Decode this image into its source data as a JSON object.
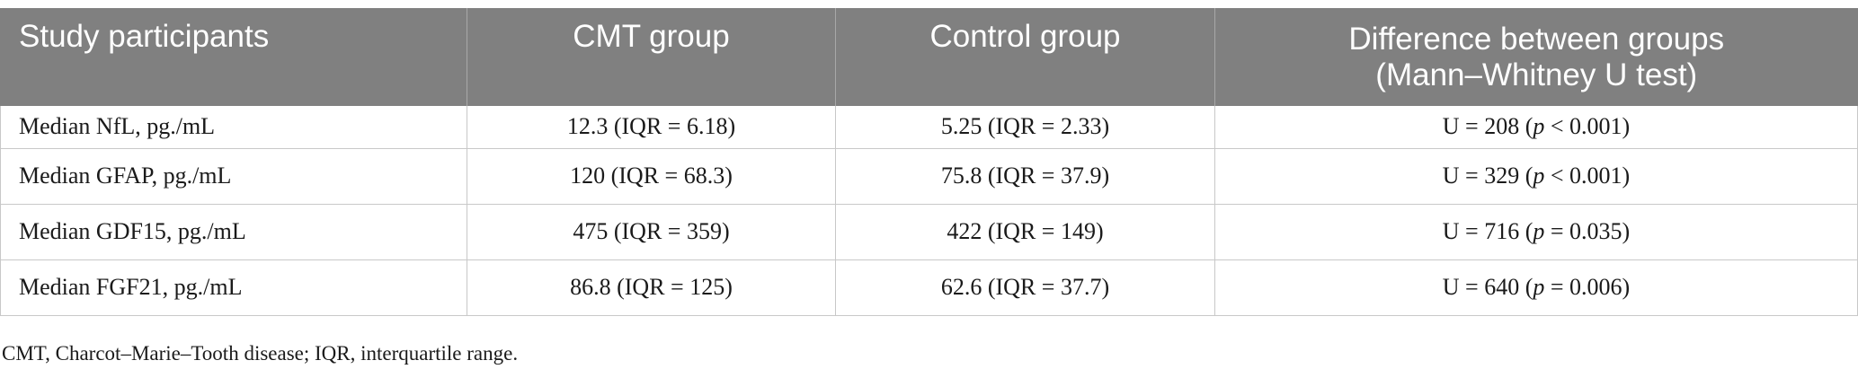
{
  "table": {
    "headers": [
      {
        "lines": [
          "Study participants"
        ]
      },
      {
        "lines": [
          "CMT group"
        ]
      },
      {
        "lines": [
          "Control group"
        ]
      },
      {
        "lines": [
          "Difference between groups",
          "(Mann–Whitney U test)"
        ]
      }
    ],
    "rows": [
      {
        "label": "Median NfL, pg./mL",
        "cmt": "12.3 (IQR = 6.18)",
        "control": "5.25 (IQR = 2.33)",
        "diff_u": "U = 208 (",
        "diff_p": "p",
        "diff_rest": " < 0.001)"
      },
      {
        "label": "Median GFAP, pg./mL",
        "cmt": "120 (IQR = 68.3)",
        "control": "75.8 (IQR = 37.9)",
        "diff_u": "U = 329 (",
        "diff_p": "p",
        "diff_rest": " < 0.001)"
      },
      {
        "label": "Median GDF15, pg./mL",
        "cmt": "475 (IQR = 359)",
        "control": "422 (IQR = 149)",
        "diff_u": "U = 716 (",
        "diff_p": "p",
        "diff_rest": " = 0.035)"
      },
      {
        "label": "Median FGF21, pg./mL",
        "cmt": "86.8 (IQR = 125)",
        "control": "62.6 (IQR = 37.7)",
        "diff_u": "U = 640 (",
        "diff_p": "p",
        "diff_rest": " = 0.006)"
      }
    ]
  },
  "footnote": "CMT, Charcot–Marie–Tooth disease; IQR, interquartile range.",
  "colors": {
    "header_bg": "#808080",
    "header_text": "#ffffff",
    "grid": "#c8c8c8"
  }
}
